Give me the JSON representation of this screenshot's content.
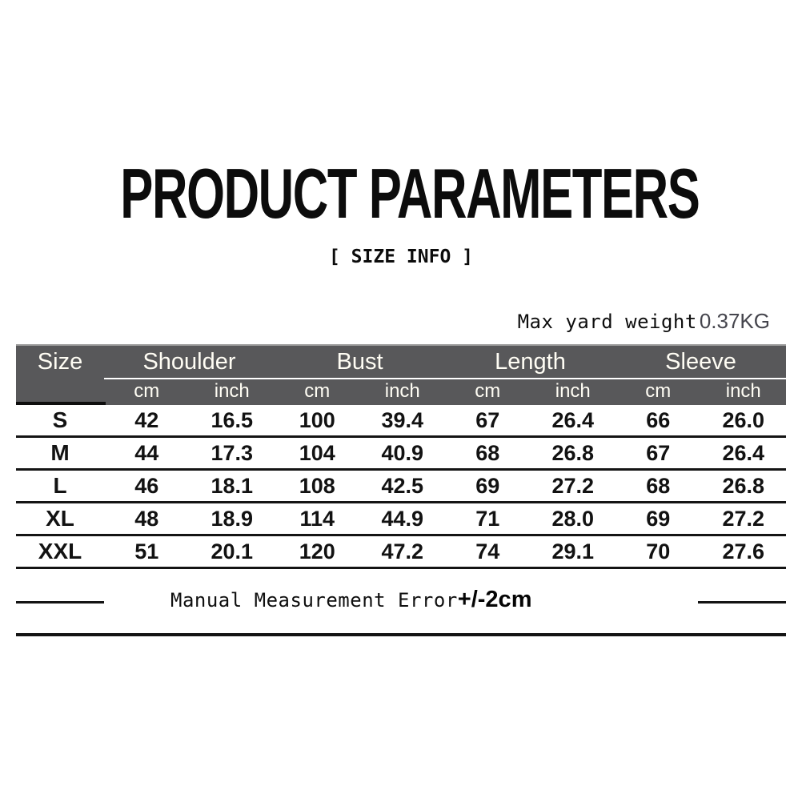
{
  "header": {
    "title": "PRODUCT PARAMETERS",
    "subtitle": "[ SIZE INFO ]"
  },
  "weight_note": {
    "label": "Max yard weight",
    "value": "0.37KG"
  },
  "size_table": {
    "corner_label": "Size",
    "groups": [
      {
        "label": "Shoulder"
      },
      {
        "label": "Bust"
      },
      {
        "label": "Length"
      },
      {
        "label": "Sleeve"
      }
    ],
    "unit_headers": [
      "cm",
      "inch",
      "cm",
      "inch",
      "cm",
      "inch",
      "cm",
      "inch"
    ],
    "rows": [
      {
        "size": "S",
        "values": [
          "42",
          "16.5",
          "100",
          "39.4",
          "67",
          "26.4",
          "66",
          "26.0"
        ]
      },
      {
        "size": "M",
        "values": [
          "44",
          "17.3",
          "104",
          "40.9",
          "68",
          "26.8",
          "67",
          "26.4"
        ]
      },
      {
        "size": "L",
        "values": [
          "46",
          "18.1",
          "108",
          "42.5",
          "69",
          "27.2",
          "68",
          "26.8"
        ]
      },
      {
        "size": "XL",
        "values": [
          "48",
          "18.9",
          "114",
          "44.9",
          "71",
          "28.0",
          "69",
          "27.2"
        ]
      },
      {
        "size": "XXL",
        "values": [
          "51",
          "20.1",
          "120",
          "47.2",
          "74",
          "29.1",
          "70",
          "27.6"
        ]
      }
    ]
  },
  "footer_note": {
    "text": "Manual Measurement Error",
    "tolerance": "+/-2cm"
  },
  "colors": {
    "header_bg": "#58585a",
    "header_text": "#fffdf4",
    "table_line": "#141414",
    "weight_value_text": "#45454d"
  }
}
